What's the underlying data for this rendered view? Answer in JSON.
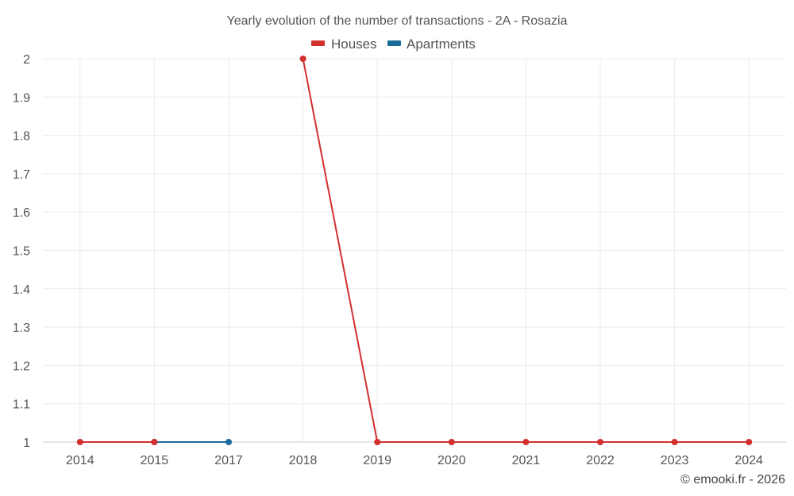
{
  "chart_data": {
    "type": "line",
    "title": "Yearly evolution of the number of transactions - 2A - Rosazia",
    "categories": [
      "2014",
      "2015",
      "2017",
      "2018",
      "2019",
      "2020",
      "2021",
      "2022",
      "2023",
      "2024"
    ],
    "y_ticks": [
      "1",
      "1.1",
      "1.2",
      "1.3",
      "1.4",
      "1.5",
      "1.6",
      "1.7",
      "1.8",
      "1.9",
      "2"
    ],
    "ylim": [
      1,
      2
    ],
    "grid": true,
    "legend_position": "top-center",
    "series": [
      {
        "name": "Apartments",
        "color": "#1a6a9a",
        "values": [
          null,
          1,
          1,
          null,
          null,
          null,
          null,
          null,
          null,
          null
        ]
      },
      {
        "name": "Houses",
        "color": "#d32f2f",
        "values": [
          1,
          1,
          null,
          2,
          1,
          1,
          1,
          1,
          1,
          1
        ]
      }
    ],
    "legend": [
      "Houses",
      "Apartments"
    ]
  },
  "credit": "© emooki.fr - 2026"
}
